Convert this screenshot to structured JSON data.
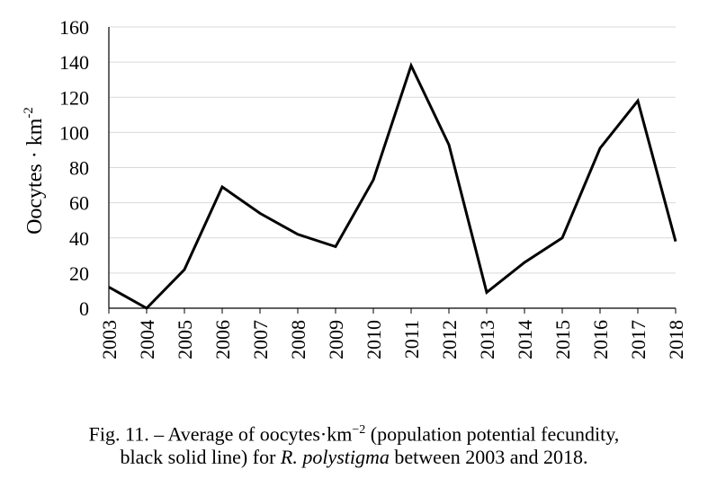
{
  "chart_data": {
    "type": "line",
    "title": "",
    "xlabel": "",
    "ylabel_text": "Oocytes · km",
    "ylabel_sup": "-2",
    "categories": [
      "2003",
      "2004",
      "2005",
      "2006",
      "2007",
      "2008",
      "2009",
      "2010",
      "2011",
      "2012",
      "2013",
      "2014",
      "2015",
      "2016",
      "2017",
      "2018"
    ],
    "series": [
      {
        "values": [
          12,
          0,
          22,
          69,
          54,
          42,
          35,
          73,
          138,
          93,
          9,
          26,
          40,
          91,
          118,
          38
        ],
        "color": "#000000"
      }
    ],
    "yticks": [
      "0",
      "20",
      "40",
      "60",
      "80",
      "100",
      "120",
      "140",
      "160"
    ],
    "ylim": [
      0,
      160
    ],
    "grid": true,
    "legend": "none"
  },
  "caption": {
    "line1_part1": "Fig. 11. – Average of oocytes·km",
    "line1_sup": "−2",
    "line1_part2": " (population potential fecundity,",
    "line2_part1": "black solid line) for ",
    "line2_italic": "R. polystigma",
    "line2_part2": " between 2003 and 2018."
  }
}
